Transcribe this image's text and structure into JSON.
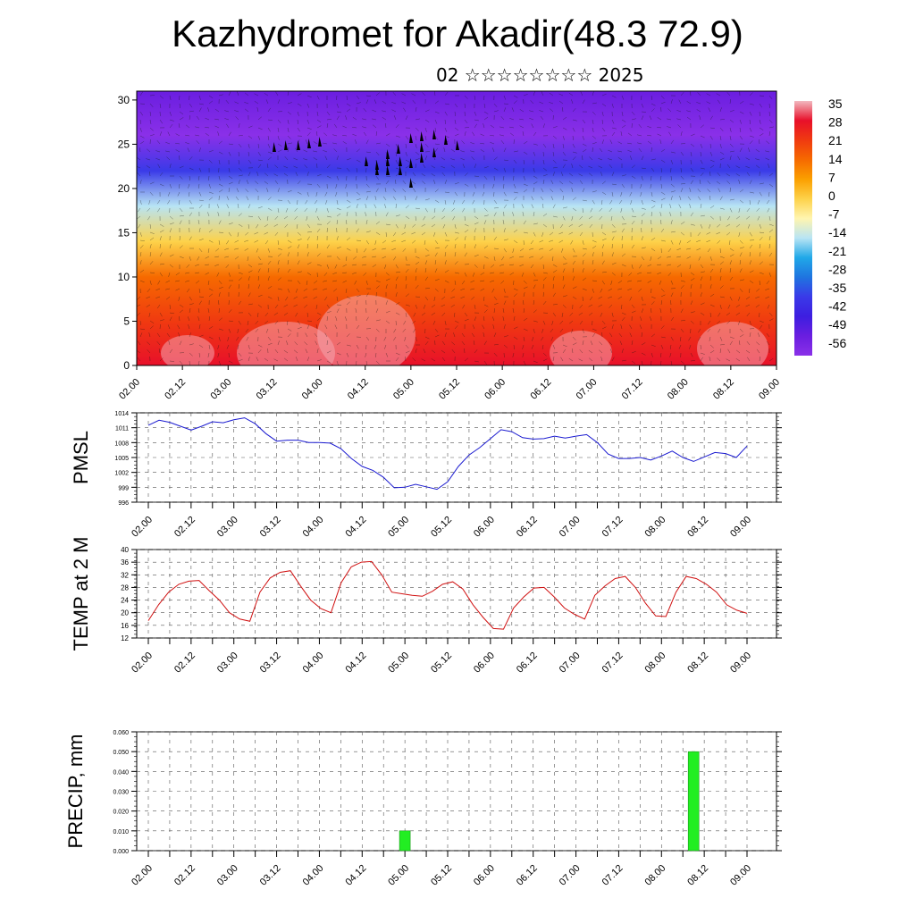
{
  "header": {
    "title": "Kazhydromet for Akadir(48.3 72.9)",
    "subtitle": "02 ☆☆☆☆☆☆☆☆ 2025"
  },
  "time_ticks": [
    "02.00",
    "02.12",
    "03.00",
    "03.12",
    "04.00",
    "04.12",
    "05.00",
    "05.12",
    "06.00",
    "06.12",
    "07.00",
    "07.12",
    "08.00",
    "08.12",
    "09.00"
  ],
  "chart_data": [
    {
      "type": "heatmap",
      "title": "Kazhydromet for Akadir(48.3 72.9)",
      "subtitle": "02 ☆☆☆☆☆☆☆☆ 2025",
      "ylim": [
        0,
        31
      ],
      "yticks": [
        "0",
        "5",
        "10",
        "15",
        "20",
        "25",
        "30"
      ],
      "colorbar": {
        "labels": [
          "35",
          "28",
          "21",
          "14",
          "7",
          "0",
          "-7",
          "-14",
          "-21",
          "-28",
          "-35",
          "-42",
          "-49",
          "-56"
        ],
        "colors": [
          "#f2b8bf",
          "#e8102a",
          "#f03a10",
          "#f66a00",
          "#fba000",
          "#fdd24a",
          "#fff5b0",
          "#b8e4f4",
          "#20a8e8",
          "#1f74e0",
          "#3a3ae8",
          "#3d1ee0",
          "#6a1ee0",
          "#8a30e8"
        ]
      },
      "temperature_bands_by_level": [
        {
          "level": 0,
          "value": 28
        },
        {
          "level": 5,
          "value": 21
        },
        {
          "level": 10,
          "value": 14
        },
        {
          "level": 14,
          "value": 0
        },
        {
          "level": 18,
          "value": -14
        },
        {
          "level": 22,
          "value": -35
        },
        {
          "level": 26,
          "value": -56
        },
        {
          "level": 31,
          "value": -49
        }
      ]
    },
    {
      "type": "line",
      "ylabel": "PMSL",
      "ylim": [
        996,
        1014
      ],
      "yticks": [
        "996",
        "999",
        "1002",
        "1005",
        "1008",
        "1011",
        "1014"
      ],
      "line_color": "#1a1ad0",
      "values": [
        1011.5,
        1012.5,
        1012.1,
        1011.3,
        1010.5,
        1011.3,
        1012.2,
        1012.0,
        1012.6,
        1013.0,
        1011.8,
        1009.8,
        1008.3,
        1008.5,
        1008.5,
        1008.0,
        1008.0,
        1007.9,
        1006.8,
        1004.8,
        1003.2,
        1002.4,
        1001.0,
        998.9,
        999.0,
        999.6,
        999.1,
        998.6,
        1000.1,
        1003.2,
        1005.5,
        1007.0,
        1008.8,
        1010.6,
        1010.2,
        1009.0,
        1008.7,
        1008.8,
        1009.3,
        1008.9,
        1009.3,
        1009.6,
        1008.0,
        1005.7,
        1004.8,
        1004.8,
        1005.0,
        1004.5,
        1005.3,
        1006.3,
        1005.0,
        1004.2,
        1005.1,
        1006.0,
        1005.8,
        1005.0,
        1007.3
      ]
    },
    {
      "type": "line",
      "ylabel": "TEMP at 2 M",
      "ylim": [
        12,
        40
      ],
      "yticks": [
        "12",
        "16",
        "20",
        "24",
        "28",
        "32",
        "36",
        "40"
      ],
      "line_color": "#d01010",
      "values": [
        17.5,
        22.5,
        26.5,
        29.0,
        30.0,
        30.2,
        27.0,
        24.0,
        20.0,
        18.0,
        17.3,
        26.5,
        31.0,
        32.8,
        33.3,
        28.5,
        24.0,
        21.3,
        20.0,
        29.5,
        34.5,
        36.0,
        36.2,
        32.0,
        26.5,
        26.0,
        25.5,
        25.2,
        26.8,
        29.0,
        29.8,
        27.5,
        22.5,
        18.5,
        15.0,
        14.8,
        21.5,
        25.0,
        27.8,
        28.0,
        25.0,
        21.5,
        19.5,
        18.0,
        25.5,
        28.5,
        30.8,
        31.5,
        28.0,
        23.0,
        19.0,
        18.8,
        26.5,
        31.5,
        30.8,
        29.0,
        26.5,
        22.5,
        20.8,
        19.8
      ]
    },
    {
      "type": "bar",
      "ylabel": "PRECIP, mm",
      "ylim": [
        0,
        0.06
      ],
      "yticks": [
        "0.000",
        "0.010",
        "0.020",
        "0.030",
        "0.040",
        "0.050",
        "0.060"
      ],
      "bar_color": "#22ee22",
      "bars": [
        {
          "time": "05.00",
          "offset_hours": 72,
          "value": 0.01
        },
        {
          "time": "08.12",
          "offset_hours": 153,
          "value": 0.05
        }
      ]
    }
  ]
}
